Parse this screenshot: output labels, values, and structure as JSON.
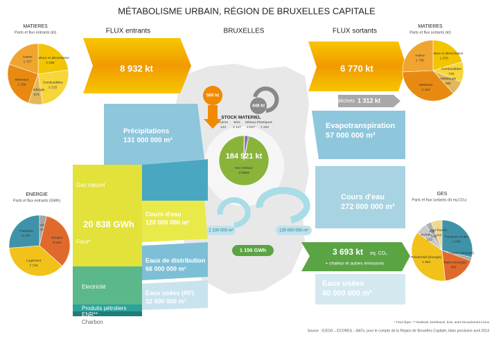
{
  "title": "MÉTABOLISME URBAIN,  RÉGION DE BRUXELLES CAPITALE",
  "headers": {
    "inflows": "FLUX entrants",
    "city": "BRUXELLES",
    "outflows": "FLUX sortants"
  },
  "inflows": {
    "materials": "8 932 kt",
    "precipitation": {
      "label": "Précipitations",
      "value": "131 000 000 m³"
    },
    "energy": {
      "total": "20 838 GWh",
      "sources": [
        "Gaz naturel",
        "Fioul*",
        "Electricité",
        "Produits pétroliers",
        "ENR**",
        "Charbon"
      ]
    },
    "river": {
      "label": "Cours d'eau",
      "value": "120 000 000 m³"
    },
    "distribution": {
      "label": "Eaux de distribution",
      "value": "66 000 000 m³"
    },
    "wastewater": {
      "label": "Eaux usées (RF)",
      "value": "32 000 000 m³"
    }
  },
  "city": {
    "import": "500 kt",
    "export": "448 kt",
    "water_loop_small": "2 100 000 m³",
    "water_loop_large": "130 000 000 m³",
    "energy_loop": "1 150 GWh",
    "stock_total": "184 921 kt"
  },
  "outflows": {
    "materials": "6 770 kt",
    "waste_label": "déchets",
    "waste": "1 312 kt",
    "evapotranspiration": {
      "label": "Evapotranspiration",
      "value": "57 000 000 m³"
    },
    "river": {
      "label": "Cours d'eau",
      "value": "272 000 000 m³"
    },
    "ghg": {
      "value": "3 693 kt",
      "unit": "eq. CO₂",
      "note": "+ chaleur et autres émissions"
    },
    "wastewater": {
      "label": "Eaux usées",
      "value": "40 000 000 m³"
    }
  },
  "footnotes": [
    "* Fioul léger, ** biodiesel, bioéthanol, bois, autre biocarburant inclus",
    "Source : ICEDD – ECORES – BATir, pour le compte de la Région de Bruxelles Capitale, bilan provisoire avril 2014"
  ],
  "chart_data": [
    {
      "type": "pie",
      "title": "MATIERES",
      "subtitle": "Parts et flux entrants (kt)",
      "categories": [
        "Agriculture et alimentation",
        "Combustibles",
        "Métallurgie",
        "Minéraux",
        "Autres"
      ],
      "values": [
        2039,
        2215,
        673,
        2239,
        1767
      ],
      "value_labels": [
        "2 039",
        "2 215",
        "673",
        "2 239",
        "1 767"
      ],
      "colors": [
        "#f2c500",
        "#f7d63a",
        "#e3b85a",
        "#e88a12",
        "#f0a530"
      ]
    },
    {
      "type": "pie",
      "title": "MATIERES",
      "subtitle": "Parts et flux sortants (kt)",
      "categories": [
        "Agriculture et alimentation",
        "Combustibles",
        "Métallurgie",
        "Minéraux",
        "Autres"
      ],
      "values": [
        1376,
        726,
        498,
        2422,
        1738
      ],
      "value_labels": [
        "1 376",
        "726",
        "498",
        "2 422",
        "1 738"
      ],
      "colors": [
        "#f2c500",
        "#f7d63a",
        "#e3b85a",
        "#e88a12",
        "#f0a530"
      ]
    },
    {
      "type": "pie",
      "title": "ENERGIE",
      "subtitle": "Parts et flux entrants (GWh)",
      "categories": [
        "Industrie",
        "Tertiaire",
        "Logement",
        "Transport"
      ],
      "values": [
        789,
        6843,
        7734,
        5472
      ],
      "value_labels": [
        "789",
        "6 843",
        "7 734",
        "5 472"
      ],
      "colors": [
        "#a4a4a4",
        "#e06a2c",
        "#f2c21a",
        "#3f93a8"
      ]
    },
    {
      "type": "pie",
      "title": "STOCK MATERIEL",
      "categories": [
        "Autres",
        "Bois",
        "Métaux",
        "Plastiques",
        "Non métaux"
      ],
      "values": [
        143,
        1147,
        3517,
        1420,
        178695
      ],
      "value_labels": [
        "143",
        "1 147",
        "3 517",
        "1 420",
        "178695"
      ],
      "colors": [
        "#9a9a9a",
        "#8a6a3a",
        "#7b5ea7",
        "#4a7bbd",
        "#8ab33a"
      ]
    },
    {
      "type": "pie",
      "title": "GES",
      "subtitle": "Parts et flux sortants (kt eq.CO₂)",
      "categories": [
        "Transport routier",
        "Industries (énergie)",
        "Tertiaire (énergie)",
        "Résidentiel (énergie)",
        "Incinération",
        "Autres",
        "Gaz fluorés"
      ],
      "values": [
        1059,
        63,
        663,
        1353,
        223,
        118,
        214
      ],
      "value_labels": [
        "1 059",
        "63",
        "663",
        "1 353",
        "223",
        "118",
        "214"
      ],
      "colors": [
        "#3f93a8",
        "#a4a4a4",
        "#e06a2c",
        "#f2c21a",
        "#c9c9c9",
        "#b0b0b0",
        "#f0d890"
      ]
    }
  ]
}
